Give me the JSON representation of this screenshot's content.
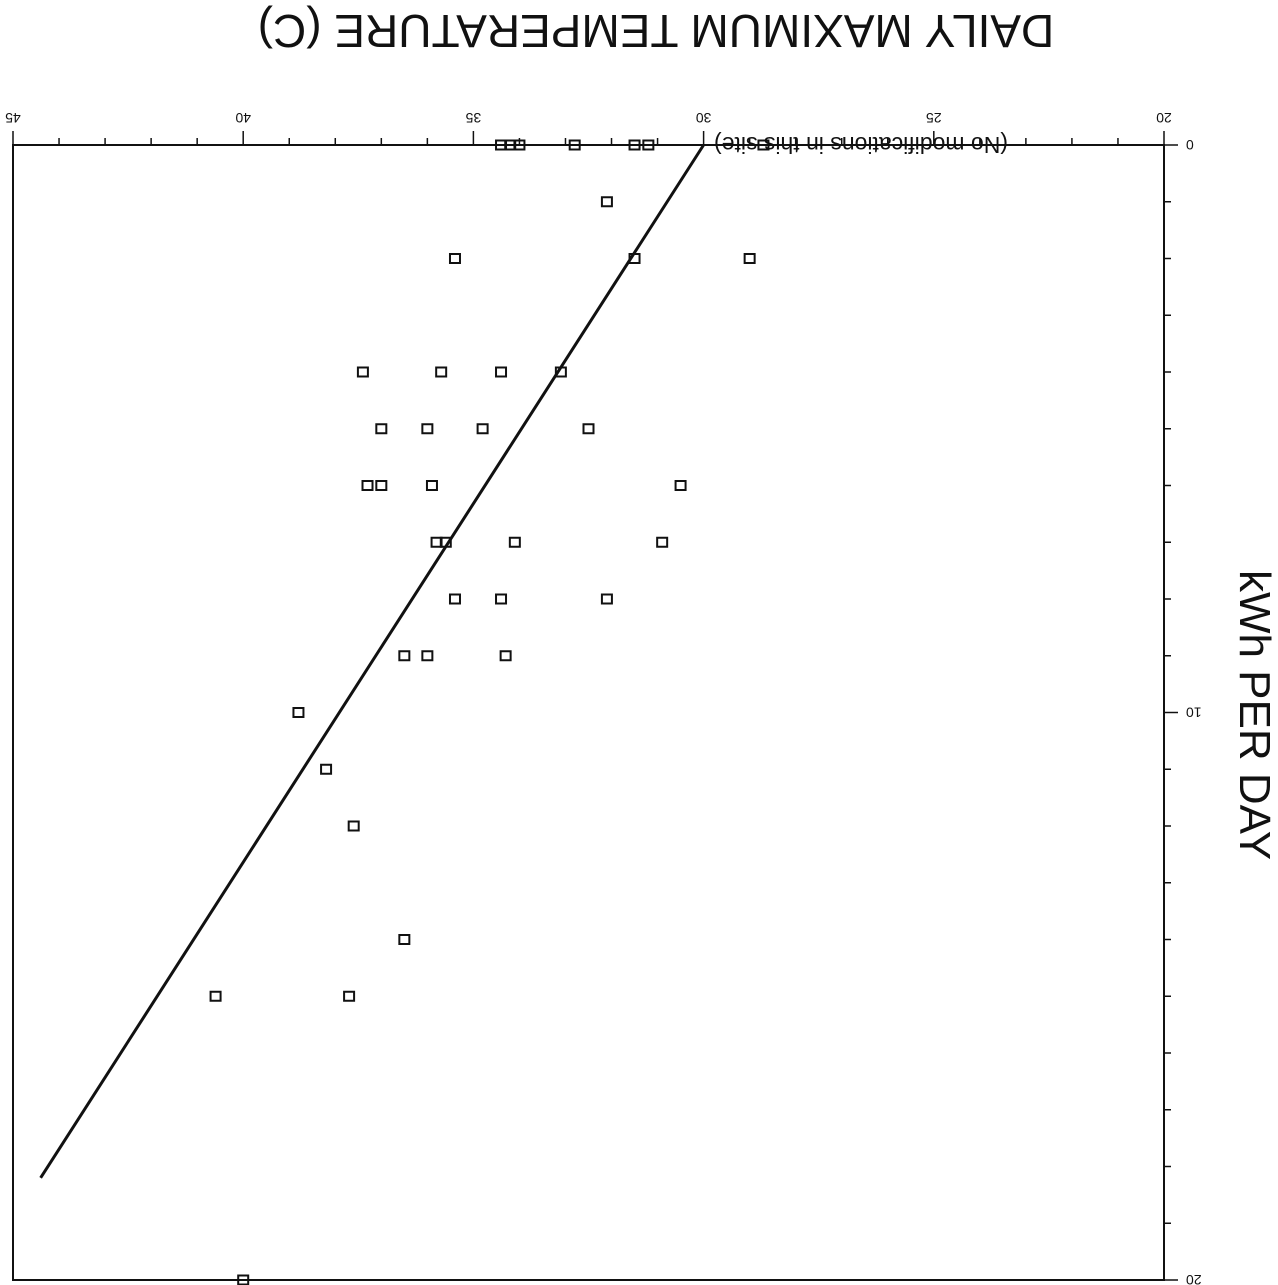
{
  "chart_data": {
    "type": "scatter",
    "orientation": "rotated-180",
    "title": "DAILY MAXIMUM TEMPERATURE (C)",
    "ylabel": "kWh PER DAY",
    "annotation": "(No modifications in this site)",
    "xlim": [
      20,
      45
    ],
    "ylim": [
      0,
      20
    ],
    "x_ticks": [
      "20",
      "25",
      "30",
      "35",
      "40",
      "45"
    ],
    "y_ticks": [
      "0",
      "10",
      "20"
    ],
    "series": [
      {
        "type": "scatter",
        "marker": "open-square",
        "points": [
          [
            28.7,
            0
          ],
          [
            31.2,
            0
          ],
          [
            31.5,
            0
          ],
          [
            32.8,
            0
          ],
          [
            34.0,
            0
          ],
          [
            34.2,
            0
          ],
          [
            34.4,
            0
          ],
          [
            32.1,
            1
          ],
          [
            29.0,
            2
          ],
          [
            31.5,
            2
          ],
          [
            35.4,
            2
          ],
          [
            33.1,
            4
          ],
          [
            34.4,
            4
          ],
          [
            35.7,
            4
          ],
          [
            37.4,
            4
          ],
          [
            32.5,
            5
          ],
          [
            34.8,
            5
          ],
          [
            36.0,
            5
          ],
          [
            37.0,
            5
          ],
          [
            30.5,
            6
          ],
          [
            35.9,
            6
          ],
          [
            37.0,
            6
          ],
          [
            37.3,
            6
          ],
          [
            30.9,
            7
          ],
          [
            34.1,
            7
          ],
          [
            35.6,
            7
          ],
          [
            35.8,
            7
          ],
          [
            32.1,
            8
          ],
          [
            34.4,
            8
          ],
          [
            35.4,
            8
          ],
          [
            34.3,
            9
          ],
          [
            36.0,
            9
          ],
          [
            36.5,
            9
          ],
          [
            38.8,
            10
          ],
          [
            38.2,
            11
          ],
          [
            37.6,
            12
          ],
          [
            36.5,
            14
          ],
          [
            37.7,
            15
          ],
          [
            40.6,
            15
          ],
          [
            40.0,
            20
          ]
        ]
      },
      {
        "type": "line",
        "points": [
          [
            30.0,
            0
          ],
          [
            44.4,
            18.2
          ]
        ]
      }
    ]
  }
}
